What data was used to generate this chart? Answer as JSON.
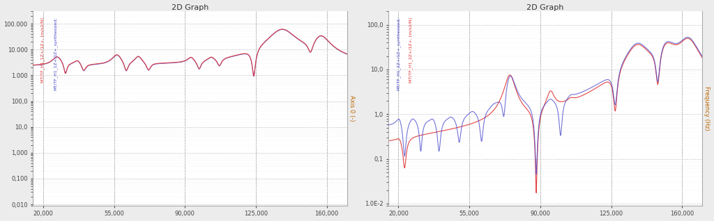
{
  "title": "2D Graph",
  "bg_color": "#ececec",
  "plot_bg": "#ffffff",
  "freq_min": 15000,
  "freq_max": 170000,
  "xticks": [
    20000,
    55000,
    90000,
    125000,
    160000
  ],
  "xtick_labels": [
    "20,000",
    "55,000",
    "90,000",
    "125,000",
    "160,000"
  ],
  "left_ylim": [
    0.009,
    300000
  ],
  "left_yticks": [
    0.01,
    0.1,
    1.0,
    10.0,
    100.0,
    1000.0,
    10000.0,
    100000.0
  ],
  "left_ytick_labels": [
    "0,010",
    "0,100",
    "1,000",
    "10,0",
    "100,0",
    "1.000",
    "10.000",
    "100.000"
  ],
  "left_ylabel": "Axis 0 (-)",
  "right_ylim": [
    0.009,
    200
  ],
  "right_yticks": [
    0.01,
    0.1,
    1.0,
    10.0,
    100.0
  ],
  "right_ytick_labels": [
    "1.0E-2",
    "0,1",
    "1,0",
    "10,0",
    "100,0"
  ],
  "right_ylabel": "Frequency (Hz)",
  "left_legend1": "MT/TF_H1_1Z+/1Z+, [m/s2/N]",
  "left_legend2": "MT/TF_H1_1Z+/1Z+_synthesized;",
  "right_legend1": "MT/TF_H1_2Z+/1Z+_synthesized;",
  "right_legend2": "MT/TF_H1_2Z+/1Z+, [m/s2/N]",
  "red_color": "#e03030",
  "blue_color": "#4444cc",
  "red_alpha": 0.9,
  "blue_alpha": 0.75
}
